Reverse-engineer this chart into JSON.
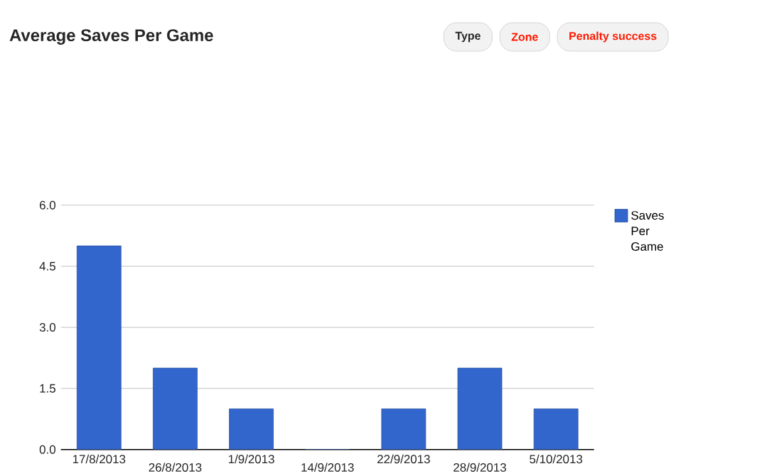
{
  "chart_data": {
    "type": "bar",
    "title": "Average Saves Per Game",
    "categories": [
      "17/8/2013",
      "26/8/2013",
      "1/9/2013",
      "14/9/2013",
      "22/9/2013",
      "28/9/2013",
      "5/10/2013"
    ],
    "series": [
      {
        "name": "Saves Per Game",
        "color": "#3366cc",
        "values": [
          5,
          2,
          1,
          0,
          1,
          2,
          1
        ]
      }
    ],
    "ylim": [
      0,
      6
    ],
    "yticks": [
      {
        "value": 0,
        "label": "0.0"
      },
      {
        "value": 1.5,
        "label": "1.5"
      },
      {
        "value": 3,
        "label": "3.0"
      },
      {
        "value": 4.5,
        "label": "4.5"
      },
      {
        "value": 6,
        "label": "6.0"
      }
    ],
    "grid": "y",
    "legend": "right",
    "annotations": [
      "Type",
      "Zone",
      "Penalty success"
    ]
  }
}
